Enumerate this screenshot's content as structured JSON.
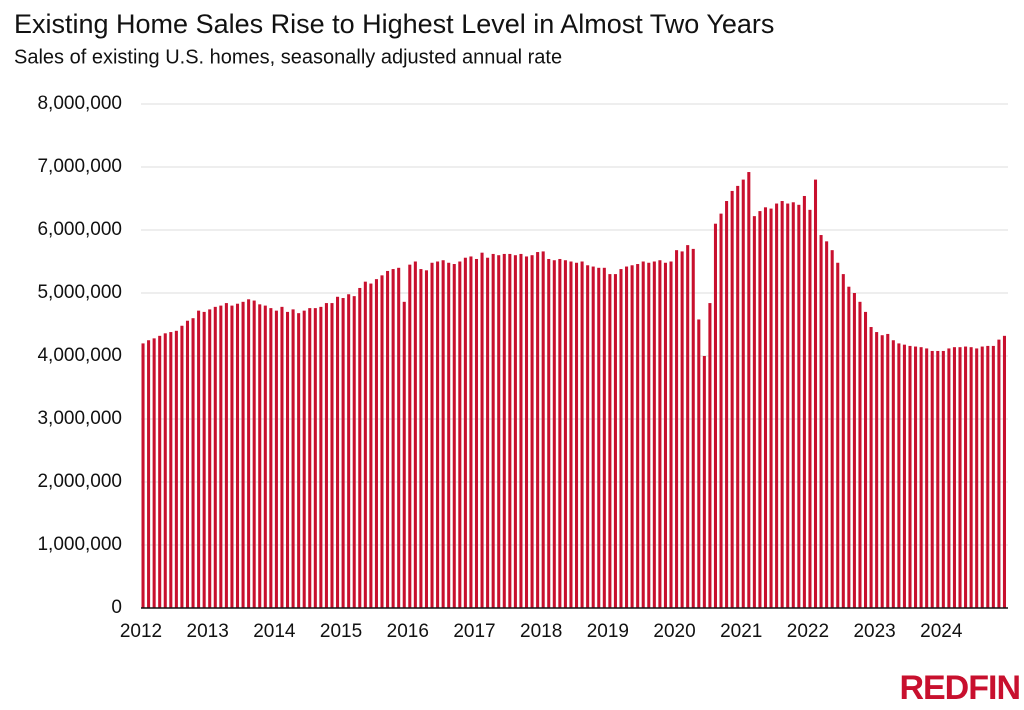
{
  "chart_data": {
    "type": "bar",
    "title": "Existing Home Sales Rise to Highest Level in Almost Two Years",
    "subtitle": "Sales of existing U.S. homes, seasonally adjusted annual rate",
    "logo": "REDFIN",
    "color": "#c8102e",
    "grid": true,
    "ylim": [
      0,
      8000000
    ],
    "yticks": [
      0,
      {
        "value": 1000000,
        "label": "1,000,000"
      },
      {
        "value": 2000000,
        "label": "2,000,000"
      },
      {
        "value": 3000000,
        "label": "3,000,000"
      },
      {
        "value": 4000000,
        "label": "4,000,000"
      },
      {
        "value": 5000000,
        "label": "5,000,000"
      },
      {
        "value": 6000000,
        "label": "6,000,000"
      },
      {
        "value": 7000000,
        "label": "7,000,000"
      },
      {
        "value": 8000000,
        "label": "8,000,000"
      }
    ],
    "categories": [
      "2012",
      null,
      null,
      null,
      null,
      null,
      null,
      null,
      null,
      null,
      null,
      null,
      "2013",
      null,
      null,
      null,
      null,
      null,
      null,
      null,
      null,
      null,
      null,
      null,
      "2014",
      null,
      null,
      null,
      null,
      null,
      null,
      null,
      null,
      null,
      null,
      null,
      "2015",
      null,
      null,
      null,
      null,
      null,
      null,
      null,
      null,
      null,
      null,
      null,
      "2016",
      null,
      null,
      null,
      null,
      null,
      null,
      null,
      null,
      null,
      null,
      null,
      "2017",
      null,
      null,
      null,
      null,
      null,
      null,
      null,
      null,
      null,
      null,
      null,
      "2018",
      null,
      null,
      null,
      null,
      null,
      null,
      null,
      null,
      null,
      null,
      null,
      "2019",
      null,
      null,
      null,
      null,
      null,
      null,
      null,
      null,
      null,
      null,
      null,
      "2020",
      null,
      null,
      null,
      null,
      null,
      null,
      null,
      null,
      null,
      null,
      null,
      "2021",
      null,
      null,
      null,
      null,
      null,
      null,
      null,
      null,
      null,
      null,
      null,
      "2022",
      null,
      null,
      null,
      null,
      null,
      null,
      null,
      null,
      null,
      null,
      null,
      "2023",
      null,
      null,
      null,
      null,
      null,
      null,
      null,
      null,
      null,
      null,
      null,
      "2024",
      null,
      null,
      null,
      null,
      null,
      null,
      null,
      null,
      null,
      null,
      null
    ],
    "values": [
      4200000,
      4250000,
      4280000,
      4320000,
      4360000,
      4380000,
      4400000,
      4480000,
      4560000,
      4600000,
      4720000,
      4700000,
      4740000,
      4780000,
      4800000,
      4840000,
      4800000,
      4830000,
      4860000,
      4900000,
      4880000,
      4820000,
      4800000,
      4760000,
      4720000,
      4780000,
      4700000,
      4740000,
      4680000,
      4720000,
      4760000,
      4760000,
      4780000,
      4840000,
      4840000,
      4940000,
      4920000,
      4980000,
      4950000,
      5080000,
      5180000,
      5150000,
      5220000,
      5280000,
      5350000,
      5380000,
      5400000,
      4860000,
      5450000,
      5500000,
      5380000,
      5360000,
      5480000,
      5500000,
      5520000,
      5480000,
      5460000,
      5500000,
      5560000,
      5580000,
      5540000,
      5640000,
      5560000,
      5620000,
      5600000,
      5620000,
      5620000,
      5600000,
      5620000,
      5580000,
      5600000,
      5650000,
      5660000,
      5540000,
      5520000,
      5540000,
      5520000,
      5500000,
      5480000,
      5500000,
      5440000,
      5420000,
      5400000,
      5400000,
      5300000,
      5300000,
      5380000,
      5420000,
      5440000,
      5460000,
      5500000,
      5480000,
      5500000,
      5520000,
      5480000,
      5500000,
      5680000,
      5660000,
      5760000,
      5700000,
      4580000,
      4000000,
      4840000,
      6100000,
      6260000,
      6460000,
      6620000,
      6700000,
      6800000,
      6920000,
      6220000,
      6300000,
      6360000,
      6340000,
      6420000,
      6460000,
      6420000,
      6440000,
      6400000,
      6540000,
      6320000,
      6800000,
      5920000,
      5820000,
      5680000,
      5480000,
      5300000,
      5100000,
      5000000,
      4860000,
      4700000,
      4460000,
      4380000,
      4330000,
      4350000,
      4250000,
      4200000,
      4180000,
      4160000,
      4150000,
      4140000,
      4120000,
      4080000,
      4080000,
      4080000,
      4120000,
      4140000,
      4140000,
      4150000,
      4140000,
      4120000,
      4150000,
      4160000,
      4160000,
      4260000,
      4320000
    ]
  }
}
